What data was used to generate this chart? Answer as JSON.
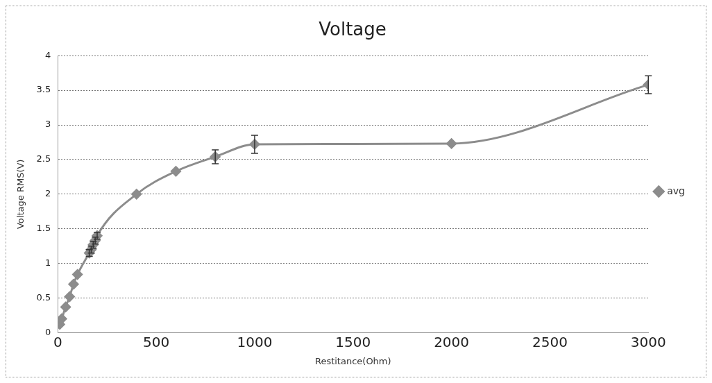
{
  "chart_data": {
    "type": "line",
    "title": "Voltage",
    "xlabel": "Restitance(Ohm)",
    "ylabel": "Voltage RMS(V)",
    "x": [
      10,
      20,
      40,
      60,
      80,
      100,
      160,
      170,
      180,
      190,
      200,
      400,
      600,
      800,
      1000,
      2000,
      3000
    ],
    "series": [
      {
        "name": "avg",
        "color": "#8c8c8c",
        "values": [
          0.12,
          0.2,
          0.37,
          0.52,
          0.7,
          0.84,
          1.15,
          1.2,
          1.27,
          1.33,
          1.4,
          2.0,
          2.33,
          2.54,
          2.72,
          2.73,
          3.58
        ],
        "errors": [
          null,
          null,
          null,
          null,
          null,
          null,
          0.05,
          0.05,
          0.05,
          0.05,
          0.05,
          null,
          null,
          0.1,
          0.13,
          null,
          0.13
        ]
      }
    ],
    "xlim": [
      0,
      3000
    ],
    "xticks": [
      0,
      500,
      1000,
      1500,
      2000,
      2500,
      3000
    ],
    "ylim": [
      0,
      4
    ],
    "yticks": [
      0,
      0.5,
      1,
      1.5,
      2,
      2.5,
      3,
      3.5,
      4
    ],
    "grid": "y",
    "legend": "right",
    "marker": "diamond",
    "line_style": "solid"
  }
}
